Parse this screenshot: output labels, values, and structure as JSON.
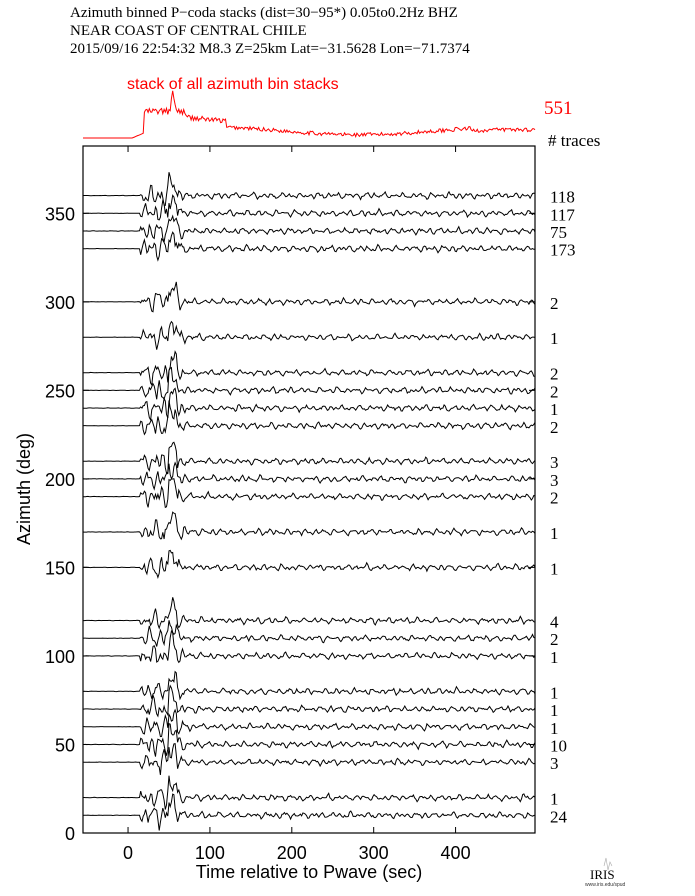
{
  "header": {
    "line1": "Azimuth binned P−coda stacks (dist=30−95*)  0.05to0.2Hz  BHZ",
    "line2": "NEAR COAST OF CENTRAL CHILE",
    "line3": "2015/09/16  22:54:32  M8.3  Z=25km Lat=−31.5628 Lon=−71.7374"
  },
  "logo": {
    "text": "IRIS",
    "url_text": "www.iris.edu/spud"
  },
  "colors": {
    "stack": "#ff0000",
    "traces": "#000000",
    "axes": "#000000"
  },
  "chart_data": {
    "type": "line",
    "title": "",
    "xlabel": "Time relative to Pwave (sec)",
    "ylabel": "Azimuth (deg)",
    "xlim": [
      -55,
      497
    ],
    "ylim": [
      0,
      388
    ],
    "xticks": [
      "0",
      "100",
      "200",
      "300",
      "400"
    ],
    "xtick_values": [
      0,
      100,
      200,
      300,
      400
    ],
    "yticks": [
      "0",
      "50",
      "100",
      "150",
      "200",
      "250",
      "300",
      "350"
    ],
    "ytick_values": [
      0,
      50,
      100,
      150,
      200,
      250,
      300,
      350
    ],
    "stack": {
      "label": "stack of all azimuth bin stacks",
      "n_traces": "551"
    },
    "count_header": "# traces",
    "traces": [
      {
        "azimuth": 360,
        "n_traces": "118"
      },
      {
        "azimuth": 350,
        "n_traces": "117"
      },
      {
        "azimuth": 340,
        "n_traces": "75"
      },
      {
        "azimuth": 330,
        "n_traces": "173"
      },
      {
        "azimuth": 300,
        "n_traces": "2"
      },
      {
        "azimuth": 280,
        "n_traces": "1"
      },
      {
        "azimuth": 260,
        "n_traces": "2"
      },
      {
        "azimuth": 250,
        "n_traces": "2"
      },
      {
        "azimuth": 240,
        "n_traces": "1"
      },
      {
        "azimuth": 230,
        "n_traces": "2"
      },
      {
        "azimuth": 210,
        "n_traces": "3"
      },
      {
        "azimuth": 200,
        "n_traces": "3"
      },
      {
        "azimuth": 190,
        "n_traces": "2"
      },
      {
        "azimuth": 170,
        "n_traces": "1"
      },
      {
        "azimuth": 150,
        "n_traces": "1"
      },
      {
        "azimuth": 120,
        "n_traces": "4"
      },
      {
        "azimuth": 110,
        "n_traces": "2"
      },
      {
        "azimuth": 100,
        "n_traces": "1"
      },
      {
        "azimuth": 80,
        "n_traces": "1"
      },
      {
        "azimuth": 70,
        "n_traces": "1"
      },
      {
        "azimuth": 60,
        "n_traces": "1"
      },
      {
        "azimuth": 50,
        "n_traces": "10"
      },
      {
        "azimuth": 40,
        "n_traces": "3"
      },
      {
        "azimuth": 20,
        "n_traces": "1"
      },
      {
        "azimuth": 10,
        "n_traces": "24"
      }
    ]
  }
}
